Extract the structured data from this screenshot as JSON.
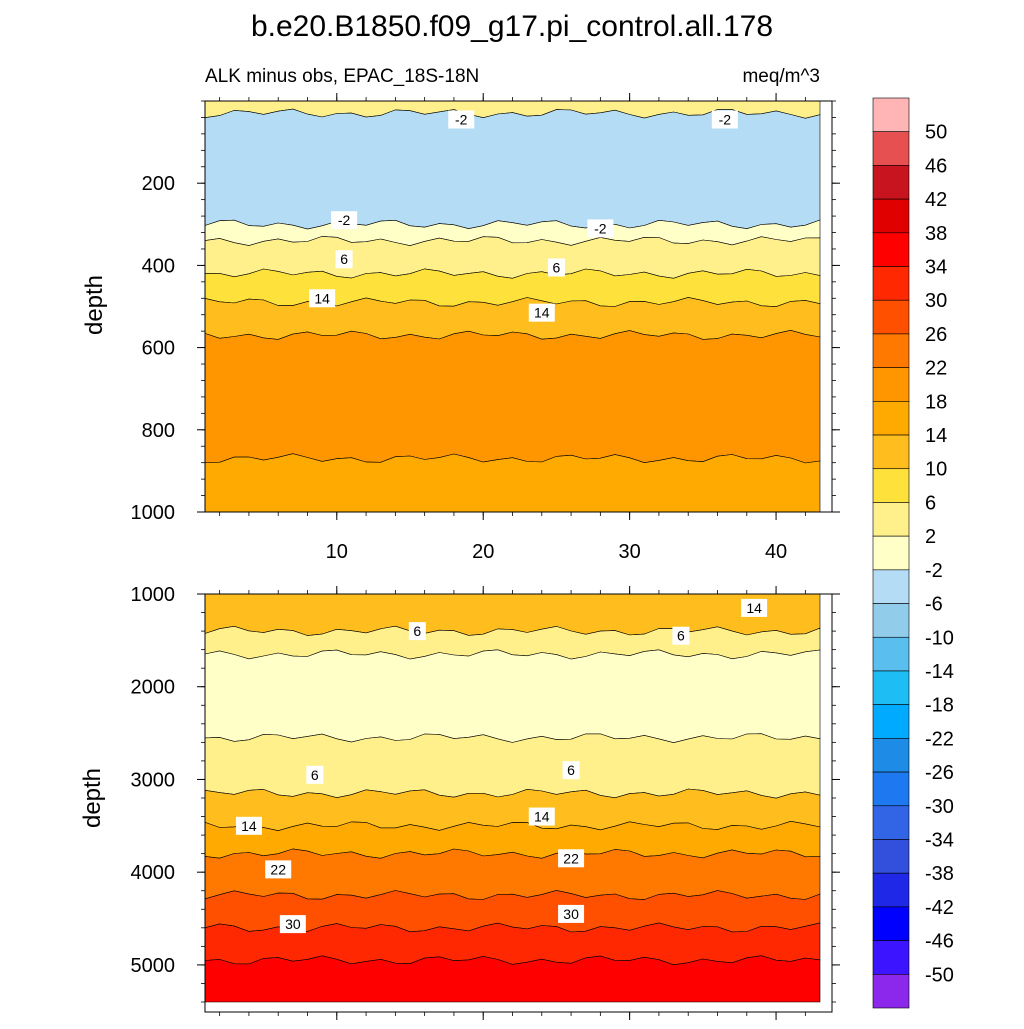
{
  "chart_data": {
    "type": "contour",
    "title": "b.e20.B1850.f09_g17.pi_control.all.178",
    "subtitle_left": "ALK minus obs, EPAC_18S-18N",
    "subtitle_right": "meq/m^3",
    "x_range": [
      1,
      43
    ],
    "x_ticks": [
      10,
      20,
      30,
      40
    ],
    "colorbar": {
      "labels": [
        "50",
        "46",
        "42",
        "38",
        "34",
        "30",
        "26",
        "22",
        "18",
        "14",
        "10",
        "6",
        "2",
        "-2",
        "-6",
        "-10",
        "-14",
        "-18",
        "-22",
        "-26",
        "-30",
        "-34",
        "-38",
        "-42",
        "-46",
        "-50"
      ],
      "colors": [
        "#ffb5b5",
        "#e65050",
        "#c8141e",
        "#e10000",
        "#ff0000",
        "#ff2800",
        "#ff5000",
        "#ff7800",
        "#ff9600",
        "#ffaa00",
        "#ffbe1e",
        "#ffe13c",
        "#fff08c",
        "#ffffc8",
        "#b4dcf5",
        "#91cdeb",
        "#5abeee",
        "#1ebef5",
        "#00aaff",
        "#1e8ce6",
        "#1e78f0",
        "#3264e6",
        "#3250dc",
        "#1e28e6",
        "#0000ff",
        "#3c14ff",
        "#8c28eb"
      ]
    },
    "panels": [
      {
        "name": "upper",
        "ylabel": "depth",
        "ylim": [
          0,
          1000
        ],
        "y_ticks": [
          200,
          400,
          600,
          800,
          1000
        ],
        "bands": [
          {
            "top": 0,
            "bottom": 30,
            "level": "2 to 6"
          },
          {
            "top": 30,
            "bottom": 300,
            "level": "-6 to -2"
          },
          {
            "top": 300,
            "bottom": 340,
            "level": "-2 to 2"
          },
          {
            "top": 340,
            "bottom": 420,
            "level": "2 to 6"
          },
          {
            "top": 420,
            "bottom": 490,
            "level": "6 to 10"
          },
          {
            "top": 490,
            "bottom": 570,
            "level": "10 to 14"
          },
          {
            "top": 570,
            "bottom": 870,
            "level": "18 to 22"
          },
          {
            "top": 870,
            "bottom": 1000,
            "level": "14 to 18"
          }
        ],
        "contour_labels": [
          {
            "text": "-2",
            "x": 18.5,
            "y": 45
          },
          {
            "text": "-2",
            "x": 36.5,
            "y": 45
          },
          {
            "text": "-2",
            "x": 10.5,
            "y": 290
          },
          {
            "text": "-2",
            "x": 28,
            "y": 310
          },
          {
            "text": "6",
            "x": 10.5,
            "y": 385
          },
          {
            "text": "6",
            "x": 25,
            "y": 405
          },
          {
            "text": "14",
            "x": 9,
            "y": 480
          },
          {
            "text": "14",
            "x": 24,
            "y": 515
          }
        ]
      },
      {
        "name": "lower",
        "ylabel": "depth",
        "ylim": [
          1000,
          5400
        ],
        "y_ticks": [
          1000,
          2000,
          3000,
          4000,
          5000
        ],
        "bands": [
          {
            "top": 1000,
            "bottom": 1400,
            "level": "6 to 14"
          },
          {
            "top": 1400,
            "bottom": 1650,
            "level": "2 to 6"
          },
          {
            "top": 1650,
            "bottom": 2550,
            "level": "-2 to 2"
          },
          {
            "top": 2550,
            "bottom": 3150,
            "level": "2 to 6"
          },
          {
            "top": 3150,
            "bottom": 3500,
            "level": "6 to 14"
          },
          {
            "top": 3500,
            "bottom": 3800,
            "level": "14 to 18"
          },
          {
            "top": 3800,
            "bottom": 4250,
            "level": "22 to 26"
          },
          {
            "top": 4250,
            "bottom": 4600,
            "level": "26 to 30"
          },
          {
            "top": 4600,
            "bottom": 4950,
            "level": "30 to 34"
          },
          {
            "top": 4950,
            "bottom": 5400,
            "level": "34 to 38"
          }
        ],
        "contour_labels": [
          {
            "text": "14",
            "x": 38.5,
            "y": 1150
          },
          {
            "text": "6",
            "x": 15.5,
            "y": 1400
          },
          {
            "text": "6",
            "x": 33.5,
            "y": 1450
          },
          {
            "text": "6",
            "x": 8.5,
            "y": 2950
          },
          {
            "text": "6",
            "x": 26,
            "y": 2900
          },
          {
            "text": "14",
            "x": 4,
            "y": 3500
          },
          {
            "text": "14",
            "x": 24,
            "y": 3400
          },
          {
            "text": "22",
            "x": 6,
            "y": 3970
          },
          {
            "text": "22",
            "x": 26,
            "y": 3850
          },
          {
            "text": "30",
            "x": 7,
            "y": 4560
          },
          {
            "text": "30",
            "x": 26,
            "y": 4450
          }
        ]
      }
    ]
  }
}
